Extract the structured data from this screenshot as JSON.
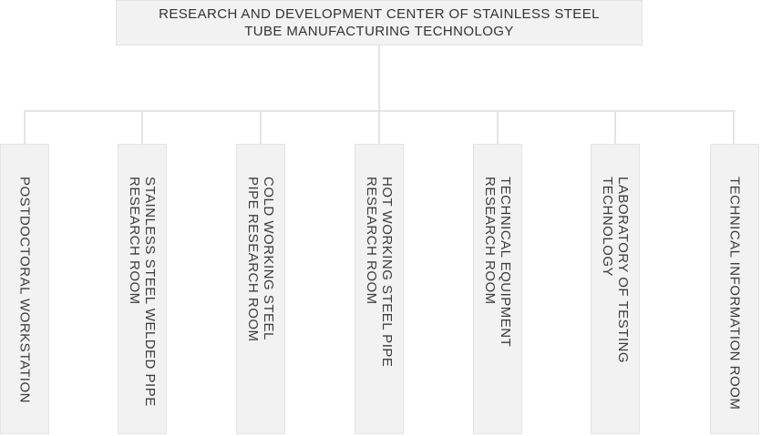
{
  "diagram": {
    "title": "organization chart",
    "root": {
      "label": "RESEARCH AND DEVELOPMENT CENTER OF STAINLESS STEEL\nTUBE MANUFACTURING TECHNOLOGY"
    },
    "units": [
      {
        "label": "POSTDOCTORAL WORKSTATION"
      },
      {
        "label": "STAINLESS STEEL WELDED PIPE\nRESEARCH ROOM"
      },
      {
        "label": "COLD WORKING STEEL\nPIPE RESEARCH ROOM"
      },
      {
        "label": "HOT WORKING STEEL PIPE\nRESEARCH ROOM"
      },
      {
        "label": "TECHNICAL EQUIPMENT\nRESEARCH ROOM"
      },
      {
        "label": "LABORATORY OF TESTING\nTECHNOLOGY"
      },
      {
        "label": "TECHNICAL INFORMATION ROOM"
      }
    ],
    "colors": {
      "box_fill": "#f2f2f2",
      "box_border": "#e4e4e4",
      "connector": "#e4e4e4",
      "root_text": "#333333",
      "unit_text": "#3c3c3c",
      "background": "#ffffff"
    }
  }
}
